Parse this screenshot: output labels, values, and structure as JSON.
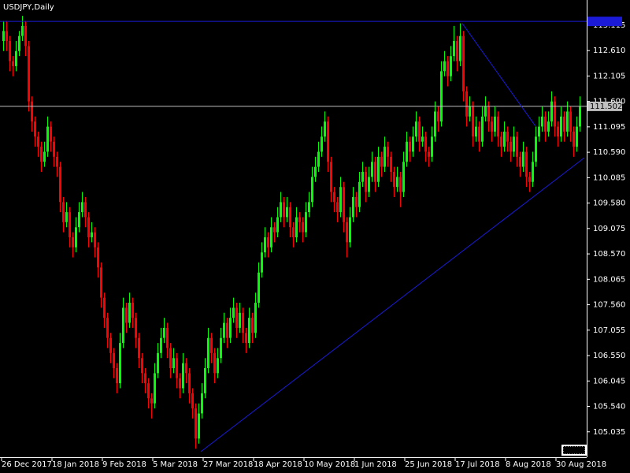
{
  "chart_data": {
    "type": "candlestick",
    "title": "USDJPY,Daily",
    "up_color": "#00ff00",
    "down_color": "#ff0000",
    "xlim": [
      -1,
      185.25
    ],
    "ylim": [
      104.53,
      113.615
    ],
    "xticks": [
      {
        "value": 0,
        "label": "26 Dec 2017"
      },
      {
        "value": 16,
        "label": "18 Jan 2018"
      },
      {
        "value": 32,
        "label": "9 Feb 2018"
      },
      {
        "value": 48,
        "label": "5 Mar 2018"
      },
      {
        "value": 64,
        "label": "27 Mar 2018"
      },
      {
        "value": 80,
        "label": "18 Apr 2018"
      },
      {
        "value": 96,
        "label": "10 May 2018"
      },
      {
        "value": 112,
        "label": "1 Jun 2018"
      },
      {
        "value": 128,
        "label": "25 Jun 2018"
      },
      {
        "value": 144,
        "label": "17 Jul 2018"
      },
      {
        "value": 160,
        "label": "8 Aug 2018"
      },
      {
        "value": 176,
        "label": "30 Aug 2018"
      }
    ],
    "yticks": [
      113.115,
      {
        "value": 112.61,
        "label": "112.610"
      },
      112.105,
      {
        "value": 111.6,
        "label": "111.600"
      },
      111.095,
      {
        "value": 110.59,
        "label": "110.590"
      },
      110.085,
      {
        "value": 109.58,
        "label": "109.580"
      },
      109.075,
      {
        "value": 108.57,
        "label": "108.570"
      },
      108.065,
      {
        "value": 107.56,
        "label": "107.560"
      },
      107.055,
      {
        "value": 106.55,
        "label": "106.550"
      },
      106.045,
      {
        "value": 105.54,
        "label": "105.540"
      },
      105.035
    ],
    "bid_line": {
      "value": 111.502,
      "color": "#c0c0c0"
    },
    "hline": {
      "value": 113.19,
      "color": "#1a1ad8"
    },
    "trend_lines": [
      {
        "x": [
          62.75,
          184.5
        ],
        "y": [
          104.64,
          110.48
        ],
        "color": "#1a1ad8"
      },
      {
        "x": [
          145.75,
          169
        ],
        "y": [
          113.15,
          111.11
        ],
        "color": "#1a1ad8"
      }
    ],
    "ohlc": [
      [
        112.8,
        113.2,
        112.6,
        113.0
      ],
      [
        113.0,
        113.2,
        112.6,
        112.8
      ],
      [
        112.8,
        112.9,
        112.2,
        112.4
      ],
      [
        112.4,
        112.5,
        112.1,
        112.3
      ],
      [
        112.3,
        112.8,
        112.2,
        112.6
      ],
      [
        112.6,
        113.0,
        112.5,
        112.9
      ],
      [
        112.9,
        113.3,
        112.8,
        113.1
      ],
      [
        113.1,
        113.2,
        112.5,
        112.7
      ],
      [
        112.7,
        112.8,
        111.4,
        111.6
      ],
      [
        111.6,
        111.7,
        111.0,
        111.2
      ],
      [
        111.2,
        111.3,
        110.7,
        110.9
      ],
      [
        110.9,
        111.0,
        110.5,
        110.7
      ],
      [
        110.7,
        110.8,
        110.2,
        110.4
      ],
      [
        110.4,
        110.8,
        110.3,
        110.6
      ],
      [
        110.6,
        111.3,
        110.5,
        111.1
      ],
      [
        111.1,
        111.2,
        110.6,
        110.8
      ],
      [
        110.8,
        110.9,
        110.3,
        110.5
      ],
      [
        110.5,
        110.6,
        110.1,
        110.3
      ],
      [
        110.3,
        110.4,
        109.4,
        109.6
      ],
      [
        109.6,
        109.7,
        109.0,
        109.2
      ],
      [
        109.2,
        109.6,
        109.1,
        109.4
      ],
      [
        109.4,
        109.5,
        108.7,
        108.9
      ],
      [
        108.9,
        109.0,
        108.5,
        108.7
      ],
      [
        108.7,
        109.3,
        108.6,
        109.1
      ],
      [
        109.1,
        109.6,
        109.0,
        109.4
      ],
      [
        109.4,
        109.8,
        109.3,
        109.6
      ],
      [
        109.6,
        109.7,
        109.1,
        109.3
      ],
      [
        109.3,
        109.4,
        108.7,
        108.9
      ],
      [
        108.9,
        109.2,
        108.8,
        109.0
      ],
      [
        109.0,
        109.1,
        108.5,
        108.7
      ],
      [
        108.7,
        108.8,
        108.1,
        108.3
      ],
      [
        108.3,
        108.4,
        107.5,
        107.7
      ],
      [
        107.7,
        107.8,
        107.1,
        107.3
      ],
      [
        107.3,
        107.4,
        106.7,
        106.9
      ],
      [
        106.9,
        107.0,
        106.4,
        106.6
      ],
      [
        106.6,
        106.7,
        106.1,
        106.3
      ],
      [
        106.3,
        106.4,
        105.8,
        106.0
      ],
      [
        106.0,
        107.0,
        105.9,
        106.8
      ],
      [
        106.8,
        107.7,
        106.7,
        107.5
      ],
      [
        107.5,
        107.6,
        107.0,
        107.2
      ],
      [
        107.2,
        107.8,
        107.1,
        107.6
      ],
      [
        107.6,
        107.7,
        107.1,
        107.3
      ],
      [
        107.3,
        107.4,
        106.7,
        106.9
      ],
      [
        106.9,
        107.0,
        106.3,
        106.5
      ],
      [
        106.5,
        106.6,
        106.0,
        106.2
      ],
      [
        106.2,
        106.3,
        105.8,
        106.0
      ],
      [
        106.0,
        106.1,
        105.5,
        105.7
      ],
      [
        105.7,
        105.8,
        105.3,
        105.6
      ],
      [
        105.6,
        106.4,
        105.5,
        106.2
      ],
      [
        106.2,
        106.8,
        106.1,
        106.6
      ],
      [
        106.6,
        107.1,
        106.5,
        106.9
      ],
      [
        106.9,
        107.3,
        106.8,
        107.1
      ],
      [
        107.1,
        107.2,
        106.5,
        106.7
      ],
      [
        106.7,
        106.8,
        106.1,
        106.3
      ],
      [
        106.3,
        106.7,
        106.2,
        106.5
      ],
      [
        106.5,
        106.6,
        105.9,
        106.1
      ],
      [
        106.1,
        106.2,
        105.7,
        105.9
      ],
      [
        105.9,
        106.6,
        105.8,
        106.4
      ],
      [
        106.4,
        106.5,
        106.0,
        106.2
      ],
      [
        106.2,
        106.3,
        105.6,
        105.8
      ],
      [
        105.8,
        105.9,
        105.3,
        105.5
      ],
      [
        105.5,
        105.6,
        104.7,
        104.9
      ],
      [
        104.9,
        105.6,
        104.8,
        105.4
      ],
      [
        105.4,
        106.0,
        105.3,
        105.8
      ],
      [
        105.8,
        106.5,
        105.7,
        106.3
      ],
      [
        106.3,
        107.1,
        106.2,
        106.9
      ],
      [
        106.9,
        107.0,
        106.4,
        106.6
      ],
      [
        106.6,
        106.7,
        106.0,
        106.2
      ],
      [
        106.2,
        106.7,
        106.1,
        106.5
      ],
      [
        106.5,
        107.1,
        106.4,
        106.9
      ],
      [
        106.9,
        107.4,
        106.8,
        107.2
      ],
      [
        107.2,
        107.3,
        106.7,
        106.9
      ],
      [
        106.9,
        107.5,
        106.8,
        107.3
      ],
      [
        107.3,
        107.7,
        107.2,
        107.5
      ],
      [
        107.5,
        107.6,
        106.9,
        107.1
      ],
      [
        107.1,
        107.6,
        107.0,
        107.4
      ],
      [
        107.4,
        107.5,
        106.8,
        107.0
      ],
      [
        107.0,
        107.1,
        106.6,
        106.8
      ],
      [
        106.8,
        107.5,
        106.7,
        107.3
      ],
      [
        107.3,
        107.4,
        106.8,
        107.0
      ],
      [
        107.0,
        107.8,
        106.9,
        107.6
      ],
      [
        107.6,
        108.4,
        107.5,
        108.2
      ],
      [
        108.2,
        108.8,
        108.1,
        108.6
      ],
      [
        108.6,
        109.1,
        108.5,
        108.9
      ],
      [
        108.9,
        109.0,
        108.5,
        108.7
      ],
      [
        108.7,
        109.3,
        108.6,
        109.1
      ],
      [
        109.1,
        109.2,
        108.8,
        109.0
      ],
      [
        109.0,
        109.5,
        108.9,
        109.3
      ],
      [
        109.3,
        109.8,
        109.2,
        109.6
      ],
      [
        109.6,
        109.7,
        109.1,
        109.3
      ],
      [
        109.3,
        109.7,
        109.2,
        109.5
      ],
      [
        109.5,
        109.6,
        108.9,
        109.1
      ],
      [
        109.1,
        109.2,
        108.7,
        108.9
      ],
      [
        108.9,
        109.5,
        108.8,
        109.3
      ],
      [
        109.3,
        109.4,
        109.0,
        109.2
      ],
      [
        109.2,
        109.3,
        108.8,
        109.0
      ],
      [
        109.0,
        109.6,
        108.9,
        109.4
      ],
      [
        109.4,
        109.8,
        109.3,
        109.6
      ],
      [
        109.6,
        110.3,
        109.5,
        110.1
      ],
      [
        110.1,
        110.5,
        110.0,
        110.3
      ],
      [
        110.3,
        110.8,
        110.2,
        110.6
      ],
      [
        110.6,
        111.1,
        110.5,
        110.9
      ],
      [
        110.9,
        111.4,
        110.8,
        111.2
      ],
      [
        111.2,
        111.3,
        110.2,
        110.4
      ],
      [
        110.4,
        110.5,
        109.6,
        109.8
      ],
      [
        109.8,
        109.9,
        109.4,
        109.6
      ],
      [
        109.6,
        109.7,
        109.2,
        109.4
      ],
      [
        109.4,
        110.1,
        109.3,
        109.9
      ],
      [
        109.9,
        110.0,
        109.0,
        109.2
      ],
      [
        109.2,
        109.3,
        108.5,
        108.8
      ],
      [
        108.8,
        109.5,
        108.7,
        109.3
      ],
      [
        109.3,
        109.9,
        109.2,
        109.7
      ],
      [
        109.7,
        109.8,
        109.3,
        109.5
      ],
      [
        109.5,
        110.2,
        109.4,
        110.0
      ],
      [
        110.0,
        110.4,
        109.9,
        110.2
      ],
      [
        110.2,
        110.3,
        109.6,
        109.8
      ],
      [
        109.8,
        110.3,
        109.7,
        110.1
      ],
      [
        110.1,
        110.6,
        110.0,
        110.4
      ],
      [
        110.4,
        110.5,
        109.8,
        110.0
      ],
      [
        110.0,
        110.7,
        109.9,
        110.5
      ],
      [
        110.5,
        110.6,
        110.1,
        110.3
      ],
      [
        110.3,
        110.9,
        110.2,
        110.7
      ],
      [
        110.7,
        110.8,
        110.3,
        110.5
      ],
      [
        110.5,
        110.6,
        110.0,
        110.2
      ],
      [
        110.2,
        110.3,
        109.7,
        109.9
      ],
      [
        109.9,
        110.3,
        109.8,
        110.1
      ],
      [
        110.1,
        110.2,
        109.5,
        109.8
      ],
      [
        109.8,
        110.6,
        109.7,
        110.4
      ],
      [
        110.4,
        111.0,
        110.3,
        110.8
      ],
      [
        110.8,
        110.9,
        110.4,
        110.6
      ],
      [
        110.6,
        111.1,
        110.5,
        110.9
      ],
      [
        110.9,
        111.4,
        110.8,
        111.2
      ],
      [
        111.2,
        111.3,
        110.6,
        110.8
      ],
      [
        110.8,
        111.1,
        110.7,
        110.9
      ],
      [
        110.9,
        111.0,
        110.4,
        110.6
      ],
      [
        110.6,
        110.7,
        110.3,
        110.5
      ],
      [
        110.5,
        111.1,
        110.4,
        110.9
      ],
      [
        110.9,
        111.6,
        110.8,
        111.4
      ],
      [
        111.4,
        111.5,
        111.0,
        111.2
      ],
      [
        111.2,
        112.4,
        111.1,
        112.2
      ],
      [
        112.2,
        112.6,
        112.1,
        112.4
      ],
      [
        112.4,
        112.5,
        111.9,
        112.1
      ],
      [
        112.1,
        112.7,
        112.0,
        112.5
      ],
      [
        112.5,
        113.1,
        112.4,
        112.8
      ],
      [
        112.8,
        112.9,
        112.2,
        112.4
      ],
      [
        112.4,
        113.15,
        112.3,
        112.9
      ],
      [
        112.9,
        113.0,
        111.6,
        111.8
      ],
      [
        111.8,
        111.9,
        111.1,
        111.3
      ],
      [
        111.3,
        111.7,
        111.2,
        111.5
      ],
      [
        111.5,
        111.6,
        110.7,
        110.9
      ],
      [
        110.9,
        111.3,
        110.8,
        111.1
      ],
      [
        111.1,
        111.2,
        110.6,
        110.8
      ],
      [
        110.8,
        111.5,
        110.7,
        111.3
      ],
      [
        111.3,
        111.7,
        111.2,
        111.5
      ],
      [
        111.5,
        111.6,
        111.0,
        111.2
      ],
      [
        111.2,
        111.3,
        110.8,
        111.0
      ],
      [
        111.0,
        111.5,
        110.9,
        111.3
      ],
      [
        111.3,
        111.4,
        110.7,
        110.9
      ],
      [
        110.9,
        111.0,
        110.5,
        110.7
      ],
      [
        110.7,
        111.2,
        110.6,
        111.0
      ],
      [
        111.0,
        111.1,
        110.6,
        110.8
      ],
      [
        110.8,
        110.9,
        110.4,
        110.6
      ],
      [
        110.6,
        111.1,
        110.5,
        110.9
      ],
      [
        110.9,
        111.0,
        110.3,
        110.5
      ],
      [
        110.5,
        110.6,
        110.1,
        110.3
      ],
      [
        110.3,
        110.8,
        110.2,
        110.6
      ],
      [
        110.6,
        110.7,
        109.9,
        110.1
      ],
      [
        110.1,
        110.2,
        109.8,
        110.0
      ],
      [
        110.0,
        110.6,
        109.9,
        110.4
      ],
      [
        110.4,
        111.1,
        110.3,
        110.9
      ],
      [
        110.9,
        111.3,
        110.8,
        111.1
      ],
      [
        111.1,
        111.5,
        111.0,
        111.3
      ],
      [
        111.3,
        111.4,
        110.8,
        111.0
      ],
      [
        111.0,
        111.4,
        110.9,
        111.2
      ],
      [
        111.2,
        111.8,
        111.1,
        111.6
      ],
      [
        111.6,
        111.7,
        110.9,
        111.1
      ],
      [
        111.1,
        111.2,
        110.7,
        110.9
      ],
      [
        110.9,
        111.5,
        110.8,
        111.3
      ],
      [
        111.3,
        111.4,
        110.8,
        111.0
      ],
      [
        111.0,
        111.6,
        110.9,
        111.4
      ],
      [
        111.4,
        111.5,
        110.8,
        111.0
      ],
      [
        111.0,
        111.1,
        110.5,
        110.7
      ],
      [
        110.7,
        111.3,
        110.6,
        111.1
      ],
      [
        111.1,
        111.7,
        111.0,
        111.5
      ]
    ]
  }
}
